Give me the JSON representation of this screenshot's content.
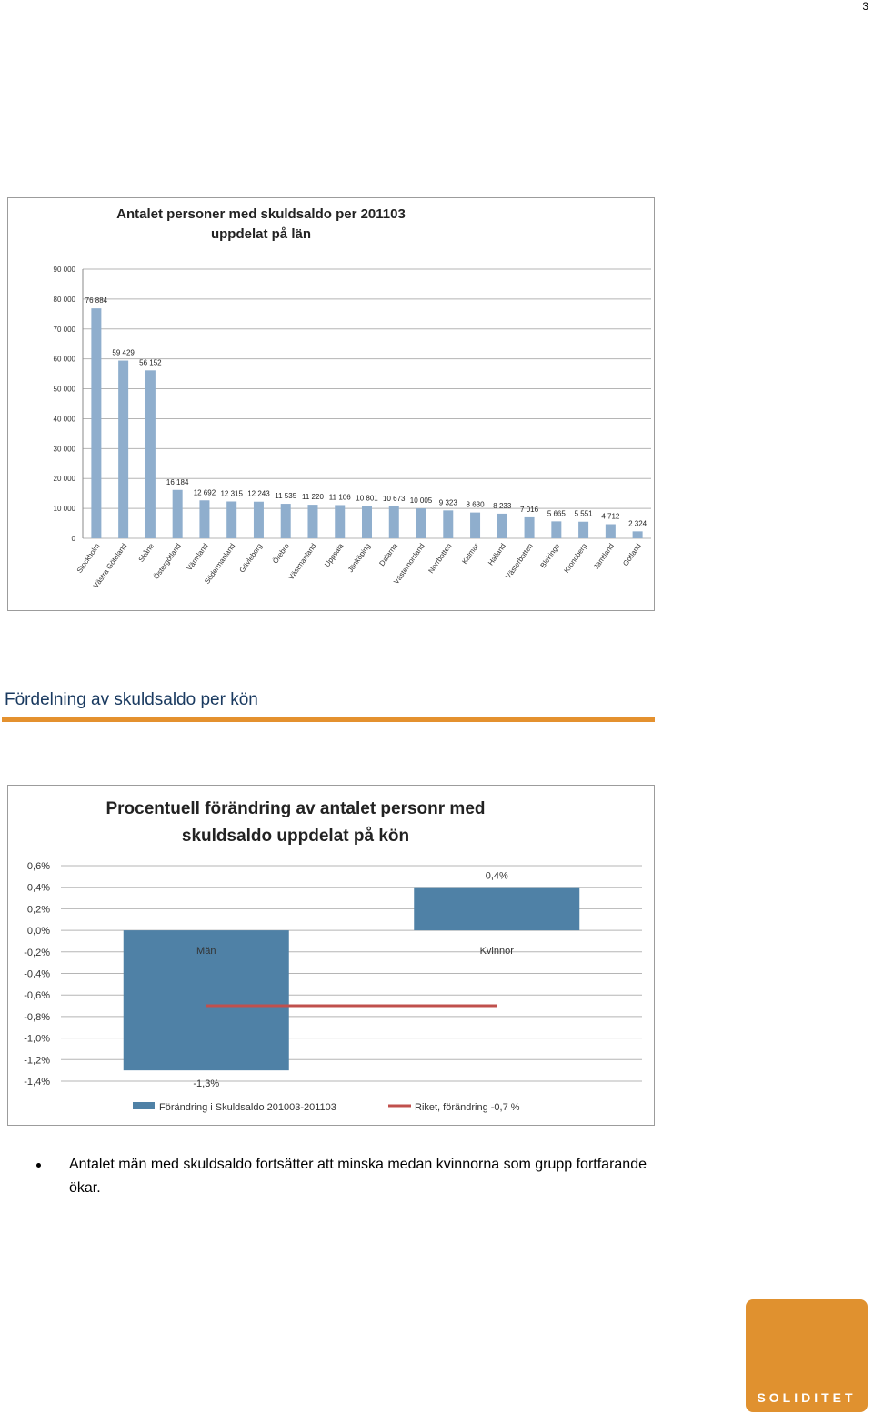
{
  "page_number": "3",
  "section_heading": "Fördelning av skuldsaldo per kön",
  "bullets": [
    "Antalet män med skuldsaldo fortsätter att minska medan kvinnorna som grupp fortfarande ökar."
  ],
  "logo_text": "SOLIDITET",
  "colors": {
    "bar_blue": "#8faecd",
    "bar_blue2": "#4f81a6",
    "line_red": "#c0504d",
    "accent_orange": "#e4912f"
  },
  "chart_data": [
    {
      "type": "bar",
      "title": "Antalet personer med skuldsaldo per 201103",
      "subtitle": "uppdelat på län",
      "categories": [
        "Stockholm",
        "Västra Götaland",
        "Skåne",
        "Östergötland",
        "Värmland",
        "Södermanland",
        "Gävleborg",
        "Örebro",
        "Västmanland",
        "Uppsala",
        "Jönköping",
        "Dalarna",
        "Västernorrland",
        "Norrbotten",
        "Kalmar",
        "Halland",
        "Västerbotten",
        "Blekinge",
        "Kronoberg",
        "Jämtland",
        "Gotland"
      ],
      "values": [
        76884,
        59429,
        56152,
        16184,
        12692,
        12315,
        12243,
        11535,
        11220,
        11106,
        10801,
        10673,
        10005,
        9323,
        8630,
        8233,
        7016,
        5665,
        5551,
        4712,
        2324
      ],
      "value_labels": [
        "76 884",
        "59 429",
        "56 152",
        "16 184",
        "12 692",
        "12 315",
        "12 243",
        "11 535",
        "11 220",
        "11 106",
        "10 801",
        "10 673",
        "10 005",
        "9 323",
        "8 630",
        "8 233",
        "7 016",
        "5 665",
        "5 551",
        "4 712",
        "2 324"
      ],
      "ylim": [
        0,
        90000
      ],
      "yticks": [
        0,
        10000,
        20000,
        30000,
        40000,
        50000,
        60000,
        70000,
        80000,
        90000
      ],
      "ytick_labels": [
        "0",
        "10 000",
        "20 000",
        "30 000",
        "40 000",
        "50 000",
        "60 000",
        "70 000",
        "80 000",
        "90 000"
      ],
      "grid": true
    },
    {
      "type": "bar",
      "title": "Procentuell förändring av antalet personr med",
      "subtitle": "skuldsaldo uppdelat på kön",
      "categories": [
        "Män",
        "Kvinnor"
      ],
      "values": [
        -1.3,
        0.4
      ],
      "value_labels": [
        "-1,3%",
        "0,4%"
      ],
      "reference_line": {
        "name": "Riket, förändring -0,7 %",
        "value": -0.7
      },
      "series_name": "Förändring i Skuldsaldo 201003-201103",
      "ylim": [
        -1.4,
        0.6
      ],
      "yticks": [
        0.6,
        0.4,
        0.2,
        0,
        -0.2,
        -0.4,
        -0.6,
        -0.8,
        -1.0,
        -1.2,
        -1.4
      ],
      "ytick_labels": [
        "0,6%",
        "0,4%",
        "0,2%",
        "0,0%",
        "-0,2%",
        "-0,4%",
        "-0,6%",
        "-0,8%",
        "-1,0%",
        "-1,2%",
        "-1,4%"
      ],
      "legend_position": "bottom",
      "grid": true
    }
  ]
}
